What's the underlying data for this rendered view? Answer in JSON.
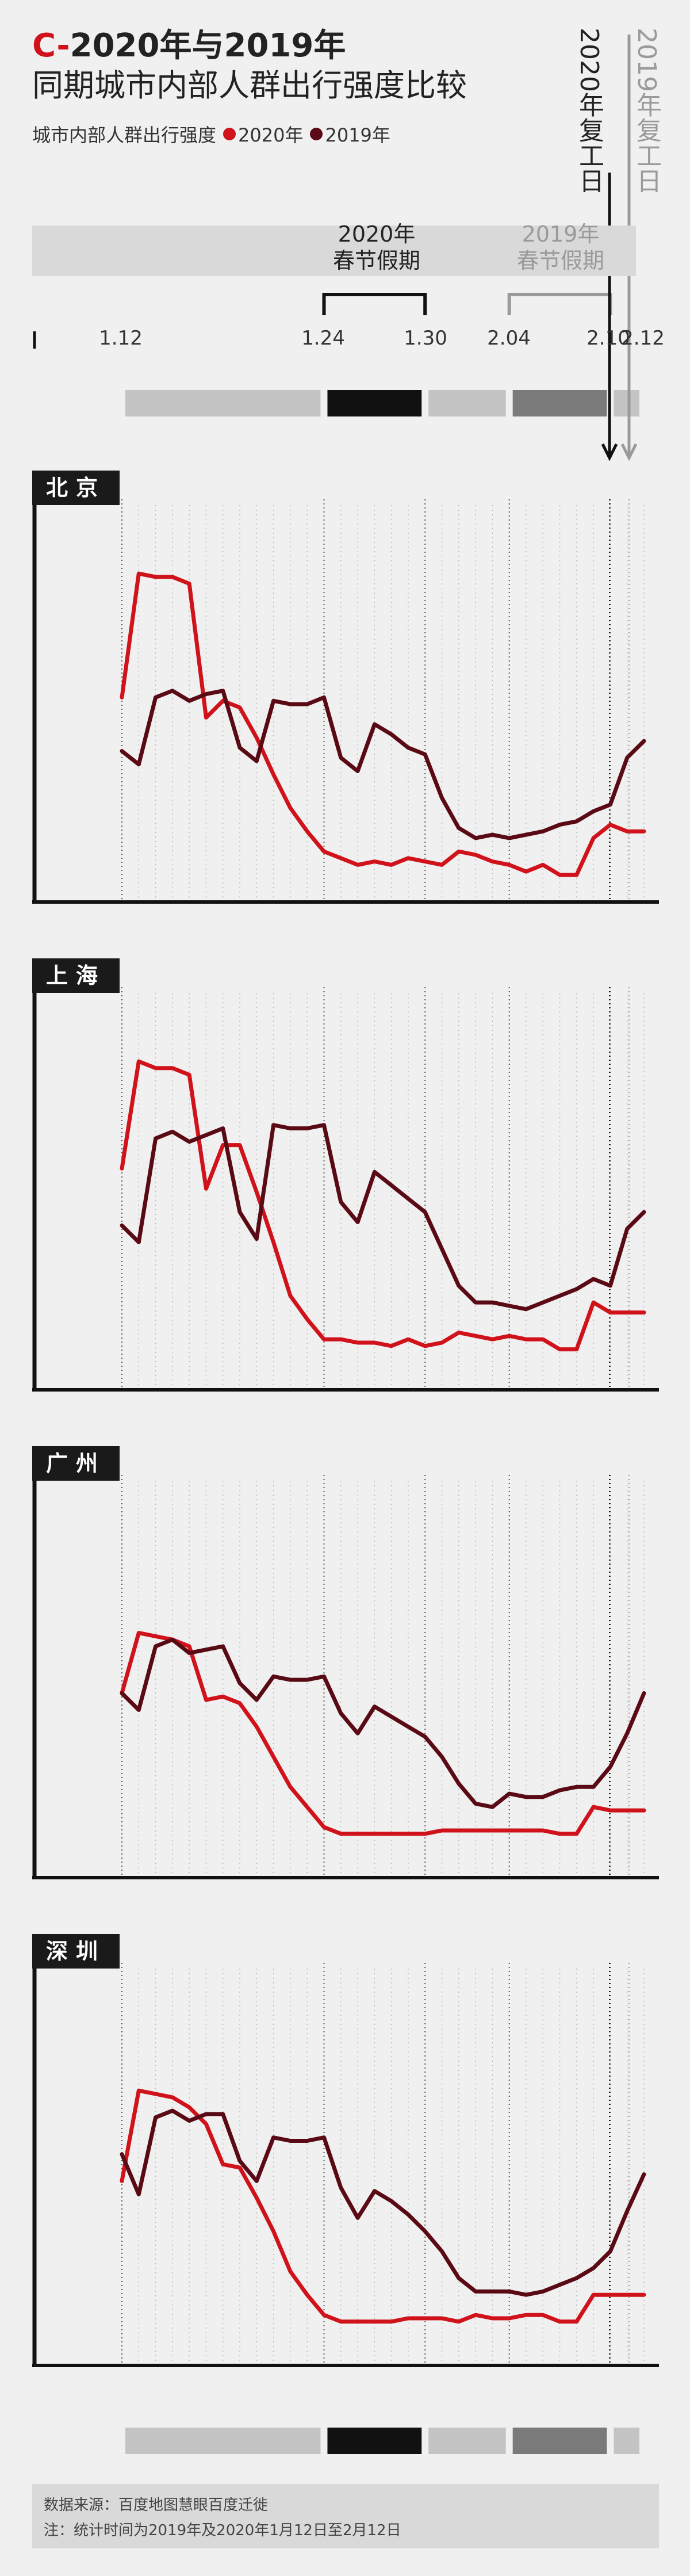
{
  "header": {
    "prefix": "C-",
    "title_line1": "2020年与2019年",
    "title_line2": "同期城市内部人群出行强度比较",
    "legend_label": "城市内部人群出行强度",
    "legend_2020": "2020年",
    "legend_2019": "2019年"
  },
  "holidays": {
    "h2020_year": "2020年",
    "h2020_name": "春节假期",
    "h2019_year": "2019年",
    "h2019_name": "春节假期"
  },
  "resume": {
    "r2020": "2020年复工日",
    "r2019": "2019年复工日"
  },
  "colors": {
    "c2020": "#d0121b",
    "c2019": "#5a0a14",
    "holiday2019_text": "#9a9a9a"
  },
  "footer": {
    "source": "数据来源：百度地图慧眼百度迁徙",
    "note": "注：统计时间为2019年及2020年1月12日至2月12日"
  },
  "chart_data": {
    "type": "line",
    "x_dates": [
      "1.12",
      "1.13",
      "1.14",
      "1.15",
      "1.16",
      "1.17",
      "1.18",
      "1.19",
      "1.20",
      "1.21",
      "1.22",
      "1.23",
      "1.24",
      "1.25",
      "1.26",
      "1.27",
      "1.28",
      "1.29",
      "1.30",
      "1.31",
      "2.01",
      "2.02",
      "2.03",
      "2.04",
      "2.05",
      "2.06",
      "2.07",
      "2.08",
      "2.09",
      "2.10",
      "2.11",
      "2.12"
    ],
    "tick_labels": [
      "1.12",
      "1.24",
      "1.30",
      "2.04",
      "2.10",
      "2.12"
    ],
    "holiday_2020": [
      "1.24",
      "1.30"
    ],
    "holiday_2019": [
      "2.04",
      "2.10"
    ],
    "resume_2020": "2.10",
    "resume_2019": "2.11",
    "ylim": [
      0,
      100
    ],
    "cities": [
      {
        "name": "北京",
        "series": [
          {
            "name": "2020年",
            "values": [
              58,
              95,
              94,
              94,
              92,
              52,
              57,
              55,
              46,
              35,
              25,
              18,
              12,
              10,
              8,
              9,
              8,
              10,
              9,
              8,
              12,
              11,
              9,
              8,
              6,
              8,
              5,
              5,
              16,
              20,
              18,
              18
            ]
          },
          {
            "name": "2019年",
            "values": [
              42,
              38,
              58,
              60,
              57,
              59,
              60,
              43,
              39,
              57,
              56,
              56,
              58,
              40,
              36,
              50,
              47,
              43,
              41,
              28,
              19,
              16,
              17,
              16,
              17,
              18,
              20,
              21,
              24,
              26,
              40,
              45
            ]
          }
        ]
      },
      {
        "name": "上海",
        "series": [
          {
            "name": "2020年",
            "values": [
              63,
              95,
              93,
              93,
              91,
              57,
              70,
              70,
              56,
              41,
              25,
              18,
              12,
              12,
              11,
              11,
              10,
              12,
              10,
              11,
              14,
              13,
              12,
              13,
              12,
              12,
              9,
              9,
              23,
              20,
              20,
              20
            ]
          },
          {
            "name": "2019年",
            "values": [
              46,
              41,
              72,
              74,
              71,
              73,
              75,
              50,
              42,
              76,
              75,
              75,
              76,
              53,
              47,
              62,
              58,
              54,
              50,
              39,
              28,
              23,
              23,
              22,
              21,
              23,
              25,
              27,
              30,
              28,
              45,
              50
            ]
          }
        ]
      },
      {
        "name": "广州",
        "series": [
          {
            "name": "2020年",
            "values": [
              52,
              70,
              69,
              68,
              66,
              50,
              51,
              49,
              42,
              33,
              24,
              18,
              12,
              10,
              10,
              10,
              10,
              10,
              10,
              11,
              11,
              11,
              11,
              11,
              11,
              11,
              10,
              10,
              18,
              17,
              17,
              17
            ]
          },
          {
            "name": "2019年",
            "values": [
              52,
              47,
              66,
              68,
              64,
              65,
              66,
              55,
              50,
              57,
              56,
              56,
              57,
              46,
              40,
              48,
              45,
              42,
              39,
              33,
              25,
              19,
              18,
              22,
              21,
              21,
              23,
              24,
              24,
              30,
              40,
              52
            ]
          }
        ]
      },
      {
        "name": "深圳",
        "series": [
          {
            "name": "2020年",
            "values": [
              52,
              79,
              78,
              77,
              74,
              69,
              57,
              56,
              47,
              37,
              25,
              18,
              12,
              10,
              10,
              10,
              10,
              11,
              11,
              11,
              10,
              12,
              11,
              11,
              12,
              12,
              10,
              10,
              18,
              18,
              18,
              18
            ]
          },
          {
            "name": "2019年",
            "values": [
              60,
              48,
              71,
              73,
              70,
              72,
              72,
              58,
              52,
              65,
              64,
              64,
              65,
              50,
              41,
              49,
              46,
              42,
              37,
              31,
              23,
              19,
              19,
              19,
              18,
              19,
              21,
              23,
              26,
              31,
              43,
              54
            ]
          }
        ]
      }
    ]
  }
}
